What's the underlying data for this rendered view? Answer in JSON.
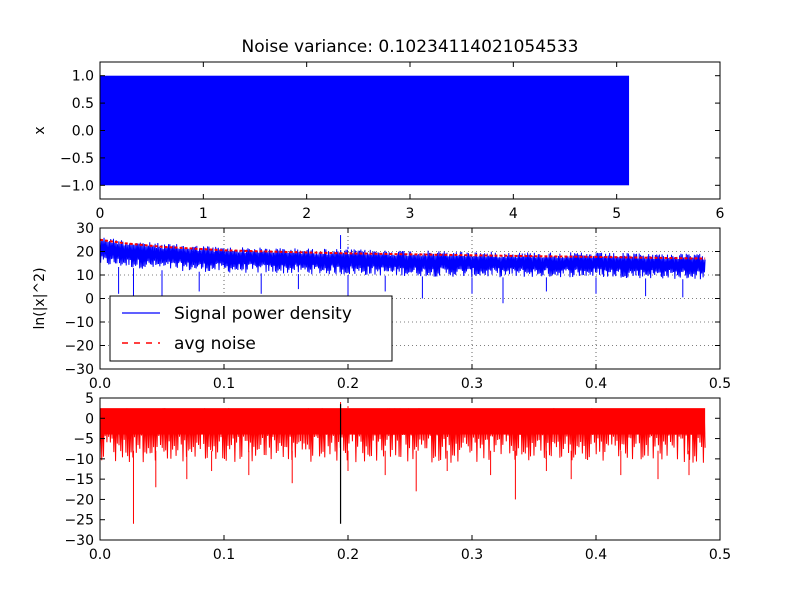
{
  "chart_data": [
    {
      "type": "line",
      "title": "Noise variance: 0.10234114021054533",
      "xlabel": "",
      "ylabel": "x",
      "xlim": [
        0,
        6
      ],
      "ylim": [
        -1.25,
        1.25
      ],
      "xticks": [
        0,
        1,
        2,
        3,
        4,
        5,
        6
      ],
      "xtick_labels": [
        "0",
        "1",
        "2",
        "3",
        "4",
        "5",
        "6"
      ],
      "yticks": [
        -1.0,
        -0.5,
        0.0,
        0.5,
        1.0
      ],
      "ytick_labels": [
        "−1.0",
        "−0.5",
        "0.0",
        "0.5",
        "1.0"
      ],
      "grid": false,
      "series": [
        {
          "color": "#0000ff",
          "x_range": [
            0,
            5.12
          ],
          "band": [
            -1.0,
            1.0
          ]
        }
      ]
    },
    {
      "type": "line",
      "title": "",
      "xlabel": "",
      "ylabel": "ln(|x|^2)",
      "xlim": [
        0,
        0.5
      ],
      "ylim": [
        -30,
        30
      ],
      "xticks": [
        0,
        0.1,
        0.2,
        0.3,
        0.4,
        0.5
      ],
      "xtick_labels": [
        "0.0",
        "0.1",
        "0.2",
        "0.3",
        "0.4",
        "0.5"
      ],
      "yticks": [
        -30,
        -20,
        -10,
        0,
        10,
        20,
        30
      ],
      "ytick_labels": [
        "−30",
        "−20",
        "−10",
        "0",
        "10",
        "20",
        "30"
      ],
      "grid": true,
      "legend": {
        "placement": "lower-left",
        "entries": [
          {
            "label": "Signal power density",
            "color": "#0000ff",
            "style": "solid"
          },
          {
            "label": "avg noise",
            "color": "#ff0000",
            "style": "dashed"
          }
        ]
      },
      "series": [
        {
          "name": "Signal power density",
          "color": "#0000ff",
          "style": "solid",
          "x_range": [
            0,
            0.488
          ],
          "upper": [
            [
              0,
              26.5
            ],
            [
              0.02,
              25
            ],
            [
              0.05,
              23.5
            ],
            [
              0.1,
              22
            ],
            [
              0.2,
              21
            ],
            [
              0.3,
              20
            ],
            [
              0.4,
              19.5
            ],
            [
              0.488,
              19
            ]
          ],
          "lower": [
            [
              0,
              14
            ],
            [
              0.05,
              12
            ],
            [
              0.1,
              11
            ],
            [
              0.2,
              10
            ],
            [
              0.3,
              9
            ],
            [
              0.4,
              9
            ],
            [
              0.488,
              8
            ]
          ],
          "spikes_down": [
            [
              0.015,
              2
            ],
            [
              0.027,
              0
            ],
            [
              0.05,
              1
            ],
            [
              0.08,
              3
            ],
            [
              0.13,
              2
            ],
            [
              0.16,
              4
            ],
            [
              0.2,
              1
            ],
            [
              0.23,
              3
            ],
            [
              0.26,
              0
            ],
            [
              0.3,
              2
            ],
            [
              0.325,
              -2
            ],
            [
              0.36,
              3
            ],
            [
              0.4,
              2
            ],
            [
              0.44,
              1
            ],
            [
              0.47,
              0.5
            ]
          ],
          "spikes_up": [
            [
              0.194,
              27
            ],
            [
              0.2,
              22
            ]
          ]
        },
        {
          "name": "avg noise",
          "color": "#ff0000",
          "style": "dashed",
          "points": [
            [
              0,
              25
            ],
            [
              0.02,
              23.5
            ],
            [
              0.05,
              22
            ],
            [
              0.1,
              20.5
            ],
            [
              0.15,
              19.8
            ],
            [
              0.2,
              19.2
            ],
            [
              0.25,
              18.8
            ],
            [
              0.3,
              18.4
            ],
            [
              0.35,
              18
            ],
            [
              0.4,
              17.7
            ],
            [
              0.45,
              17.3
            ],
            [
              0.488,
              17
            ]
          ]
        }
      ]
    },
    {
      "type": "line",
      "title": "",
      "xlabel": "",
      "ylabel": "",
      "xlim": [
        0,
        0.5
      ],
      "ylim": [
        -30,
        5
      ],
      "xticks": [
        0,
        0.1,
        0.2,
        0.3,
        0.4,
        0.5
      ],
      "xtick_labels": [
        "0.0",
        "0.1",
        "0.2",
        "0.3",
        "0.4",
        "0.5"
      ],
      "yticks": [
        -30,
        -25,
        -20,
        -15,
        -10,
        -5,
        0,
        5
      ],
      "ytick_labels": [
        "−30",
        "−25",
        "−20",
        "−15",
        "−10",
        "−5",
        "0",
        "5"
      ],
      "grid": false,
      "series": [
        {
          "color": "#ff0000",
          "x_range": [
            0,
            0.488
          ],
          "band": [
            -10,
            2.5
          ],
          "spikes_down": [
            [
              0.027,
              -26
            ],
            [
              0.045,
              -17
            ],
            [
              0.07,
              -15
            ],
            [
              0.09,
              -13
            ],
            [
              0.12,
              -14
            ],
            [
              0.155,
              -16
            ],
            [
              0.2,
              -13
            ],
            [
              0.23,
              -14
            ],
            [
              0.255,
              -18
            ],
            [
              0.28,
              -13
            ],
            [
              0.315,
              -14
            ],
            [
              0.335,
              -20
            ],
            [
              0.36,
              -13
            ],
            [
              0.38,
              -15
            ],
            [
              0.42,
              -14
            ],
            [
              0.45,
              -15
            ],
            [
              0.475,
              -14
            ]
          ],
          "spikes_up": [
            [
              0.194,
              4
            ],
            [
              0.2,
              3
            ]
          ]
        },
        {
          "color": "#000000",
          "spike": [
            [
              0.194,
              3.5
            ],
            [
              0.194,
              -26
            ]
          ]
        }
      ]
    }
  ]
}
